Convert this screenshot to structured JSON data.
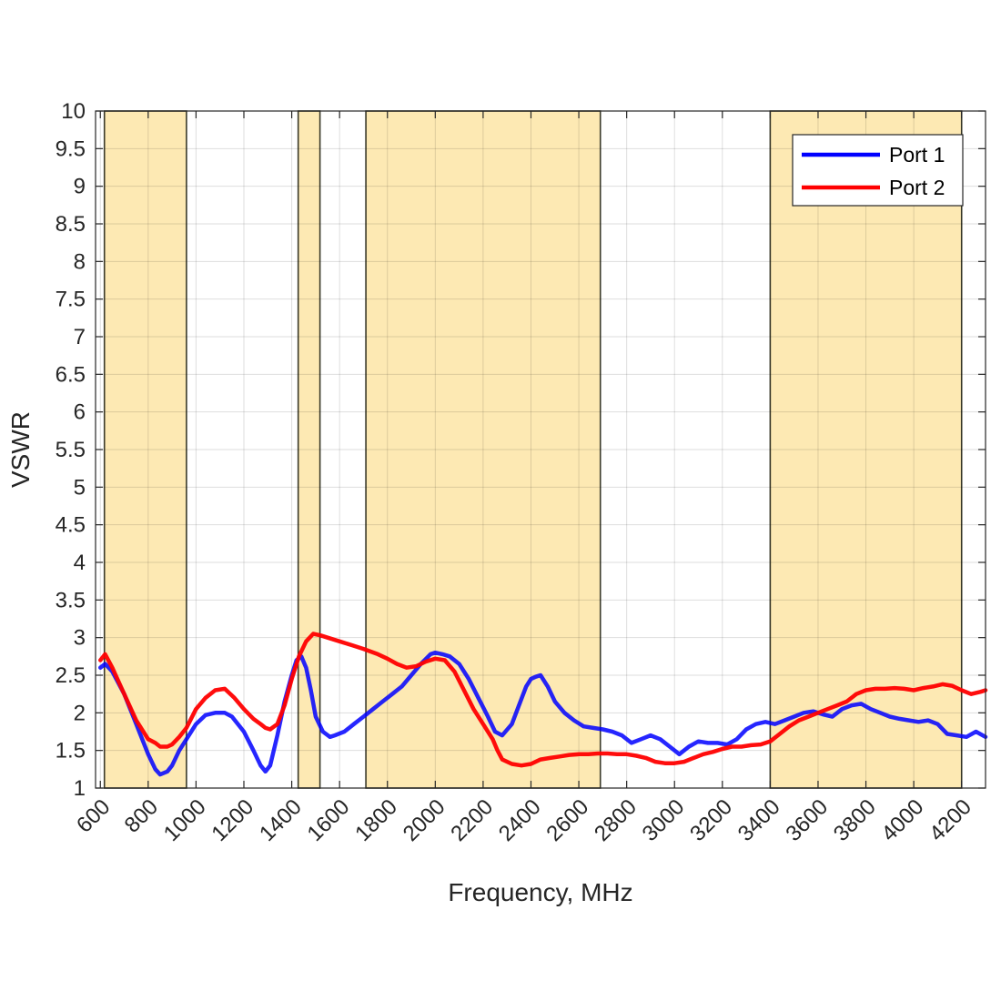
{
  "chart_data": {
    "type": "line",
    "xlabel": "Frequency, MHz",
    "ylabel": "VSWR",
    "xlim": [
      580,
      4300
    ],
    "ylim": [
      1,
      10
    ],
    "x_ticks": [
      600,
      800,
      1000,
      1200,
      1400,
      1600,
      1800,
      2000,
      2200,
      2400,
      2600,
      2800,
      3000,
      3200,
      3400,
      3600,
      3800,
      4000,
      4200
    ],
    "y_ticks": [
      1,
      1.5,
      2,
      2.5,
      3,
      3.5,
      4,
      4.5,
      5,
      5.5,
      6,
      6.5,
      7,
      7.5,
      8,
      8.5,
      9,
      9.5,
      10
    ],
    "y_tick_labels": [
      "1",
      "1.5",
      "2",
      "2.5",
      "3",
      "3.5",
      "4",
      "4.5",
      "5",
      "5.5",
      "6",
      "6.5",
      "7",
      "7.5",
      "8",
      "8.5",
      "9",
      "9.5",
      "10"
    ],
    "grid": true,
    "legend_position": "top-right",
    "band_color": "#fde9b3",
    "bands": [
      {
        "start": 617,
        "end": 960
      },
      {
        "start": 1427,
        "end": 1518
      },
      {
        "start": 1710,
        "end": 2690
      },
      {
        "start": 3400,
        "end": 4200
      }
    ],
    "series": [
      {
        "name": "Port 1",
        "color": "#0000ff",
        "x": [
          600,
          620,
          650,
          700,
          750,
          800,
          830,
          850,
          880,
          900,
          930,
          960,
          1000,
          1040,
          1080,
          1120,
          1150,
          1200,
          1240,
          1270,
          1290,
          1310,
          1340,
          1370,
          1400,
          1420,
          1440,
          1460,
          1480,
          1500,
          1530,
          1560,
          1580,
          1620,
          1660,
          1700,
          1740,
          1780,
          1820,
          1860,
          1900,
          1940,
          1980,
          2000,
          2030,
          2060,
          2100,
          2140,
          2180,
          2220,
          2250,
          2280,
          2320,
          2350,
          2380,
          2400,
          2420,
          2440,
          2470,
          2500,
          2540,
          2580,
          2620,
          2660,
          2700,
          2740,
          2780,
          2820,
          2860,
          2900,
          2940,
          2980,
          3020,
          3060,
          3100,
          3140,
          3180,
          3220,
          3260,
          3300,
          3340,
          3380,
          3420,
          3460,
          3500,
          3540,
          3580,
          3620,
          3660,
          3700,
          3740,
          3780,
          3820,
          3860,
          3900,
          3940,
          3980,
          4020,
          4060,
          4100,
          4140,
          4180,
          4220,
          4260,
          4300
        ],
        "y": [
          2.6,
          2.65,
          2.55,
          2.25,
          1.85,
          1.45,
          1.25,
          1.18,
          1.22,
          1.3,
          1.5,
          1.65,
          1.85,
          1.97,
          2.0,
          2.0,
          1.95,
          1.75,
          1.5,
          1.3,
          1.22,
          1.3,
          1.7,
          2.15,
          2.5,
          2.7,
          2.75,
          2.6,
          2.3,
          1.95,
          1.75,
          1.68,
          1.7,
          1.75,
          1.85,
          1.95,
          2.05,
          2.15,
          2.25,
          2.35,
          2.5,
          2.65,
          2.78,
          2.8,
          2.78,
          2.75,
          2.65,
          2.45,
          2.2,
          1.95,
          1.75,
          1.7,
          1.85,
          2.1,
          2.35,
          2.45,
          2.48,
          2.5,
          2.35,
          2.15,
          2.0,
          1.9,
          1.82,
          1.8,
          1.78,
          1.75,
          1.7,
          1.6,
          1.65,
          1.7,
          1.65,
          1.55,
          1.45,
          1.55,
          1.62,
          1.6,
          1.6,
          1.58,
          1.65,
          1.78,
          1.85,
          1.88,
          1.85,
          1.9,
          1.95,
          2.0,
          2.02,
          1.98,
          1.95,
          2.05,
          2.1,
          2.12,
          2.05,
          2.0,
          1.95,
          1.92,
          1.9,
          1.88,
          1.9,
          1.85,
          1.72,
          1.7,
          1.68,
          1.75,
          1.68
        ]
      },
      {
        "name": "Port 2",
        "color": "#ff0000",
        "x": [
          600,
          620,
          650,
          700,
          750,
          800,
          830,
          850,
          880,
          900,
          930,
          960,
          1000,
          1040,
          1080,
          1120,
          1160,
          1200,
          1240,
          1270,
          1290,
          1310,
          1340,
          1370,
          1400,
          1430,
          1460,
          1490,
          1520,
          1550,
          1600,
          1650,
          1700,
          1760,
          1800,
          1840,
          1880,
          1920,
          1960,
          2000,
          2040,
          2080,
          2120,
          2160,
          2200,
          2240,
          2260,
          2280,
          2320,
          2360,
          2400,
          2440,
          2480,
          2520,
          2560,
          2600,
          2640,
          2680,
          2720,
          2760,
          2800,
          2840,
          2880,
          2920,
          2960,
          3000,
          3040,
          3080,
          3120,
          3160,
          3200,
          3240,
          3280,
          3320,
          3360,
          3400,
          3440,
          3480,
          3520,
          3560,
          3600,
          3640,
          3680,
          3720,
          3760,
          3800,
          3840,
          3880,
          3920,
          3960,
          4000,
          4040,
          4080,
          4120,
          4160,
          4200,
          4240,
          4280,
          4300
        ],
        "y": [
          2.7,
          2.78,
          2.6,
          2.25,
          1.9,
          1.65,
          1.6,
          1.55,
          1.55,
          1.58,
          1.68,
          1.8,
          2.05,
          2.2,
          2.3,
          2.32,
          2.2,
          2.05,
          1.92,
          1.85,
          1.8,
          1.78,
          1.85,
          2.1,
          2.45,
          2.75,
          2.95,
          3.05,
          3.03,
          3.0,
          2.95,
          2.9,
          2.85,
          2.78,
          2.72,
          2.65,
          2.6,
          2.62,
          2.68,
          2.72,
          2.7,
          2.55,
          2.3,
          2.05,
          1.85,
          1.65,
          1.5,
          1.38,
          1.32,
          1.3,
          1.32,
          1.38,
          1.4,
          1.42,
          1.44,
          1.45,
          1.45,
          1.46,
          1.46,
          1.45,
          1.45,
          1.43,
          1.4,
          1.35,
          1.33,
          1.33,
          1.35,
          1.4,
          1.45,
          1.48,
          1.52,
          1.55,
          1.55,
          1.57,
          1.58,
          1.62,
          1.72,
          1.82,
          1.9,
          1.95,
          2.0,
          2.05,
          2.1,
          2.15,
          2.25,
          2.3,
          2.32,
          2.32,
          2.33,
          2.32,
          2.3,
          2.33,
          2.35,
          2.38,
          2.36,
          2.3,
          2.25,
          2.28,
          2.3
        ]
      }
    ]
  }
}
